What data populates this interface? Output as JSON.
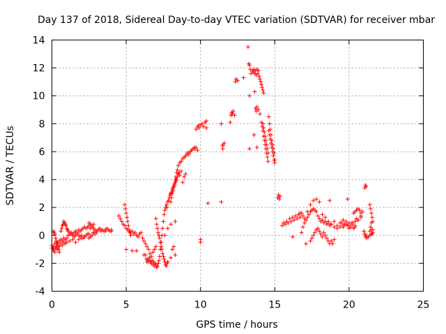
{
  "chart_data": {
    "type": "scatter",
    "title": "Day 137 of 2018, Sidereal Day-to-day VTEC variation (SDTVAR) for receiver mbar",
    "xlabel": "GPS time / hours",
    "ylabel": "SDTVAR / TECUs",
    "xlim": [
      0,
      25
    ],
    "ylim": [
      -4,
      14
    ],
    "xticks": [
      0,
      5,
      10,
      15,
      20,
      25
    ],
    "yticks": [
      -4,
      -2,
      0,
      2,
      4,
      6,
      8,
      10,
      12,
      14
    ],
    "grid": true,
    "marker": "+",
    "color": "#ff0000",
    "series": [
      {
        "name": "SDTVAR",
        "x": [
          0.0,
          0.1,
          0.2,
          0.3,
          0.4,
          0.5,
          0.6,
          0.7,
          0.8,
          0.9,
          1.0,
          1.1,
          1.2,
          1.3,
          1.4,
          1.5,
          1.6,
          1.7,
          1.8,
          1.9,
          2.0,
          2.1,
          2.2,
          2.3,
          2.4,
          2.5,
          2.6,
          2.7,
          2.8,
          2.9,
          3.0,
          3.1,
          3.2,
          3.3,
          3.4,
          3.5,
          3.6,
          3.7,
          3.8,
          3.9,
          4.0,
          0.0,
          0.05,
          0.1,
          0.15,
          0.2,
          0.25,
          0.3,
          0.35,
          0.4,
          0.5,
          0.6,
          0.7,
          0.8,
          0.9,
          1.0,
          1.2,
          1.4,
          1.6,
          1.8,
          2.0,
          2.2,
          2.5,
          2.8,
          3.0,
          3.3,
          3.6,
          4.0,
          0.6,
          0.65,
          0.7,
          0.75,
          0.8,
          0.85,
          0.9,
          0.95,
          1.0,
          1.05,
          1.1,
          1.2,
          1.3,
          1.4,
          1.5,
          1.6,
          1.7,
          1.8,
          1.9,
          2.0,
          2.1,
          2.2,
          2.3,
          2.4,
          2.5,
          2.6,
          2.7,
          2.8,
          2.9,
          3.0,
          0.1,
          0.15,
          0.2,
          0.25,
          0.3,
          0.35,
          0.4,
          0.45,
          0.5,
          2.5,
          2.6,
          2.7,
          2.8,
          4.5,
          4.6,
          4.7,
          4.8,
          4.9,
          5.0,
          5.1,
          5.2,
          5.3,
          5.4,
          5.5,
          5.6,
          5.7,
          5.8,
          5.9,
          6.0,
          6.1,
          6.2,
          6.3,
          6.4,
          6.5,
          6.6,
          6.7,
          6.8,
          6.9,
          7.0,
          4.9,
          4.95,
          5.0,
          5.05,
          5.1,
          5.15,
          5.2,
          5.25,
          5.3,
          6.3,
          6.35,
          6.4,
          6.45,
          6.5,
          6.55,
          6.6,
          6.65,
          6.7,
          6.75,
          6.8,
          6.85,
          6.9,
          6.95,
          7.0,
          7.05,
          7.1,
          7.15,
          7.2,
          7.25,
          7.3,
          7.35,
          7.4,
          7.45,
          7.5,
          7.55,
          7.6,
          7.65,
          7.7,
          7.75,
          7.8,
          7.85,
          7.9,
          7.95,
          8.0,
          8.05,
          8.1,
          8.15,
          8.2,
          8.25,
          8.3,
          8.35,
          8.4,
          8.45,
          8.5,
          8.55,
          8.6,
          8.7,
          8.8,
          8.9,
          9.0,
          9.1,
          9.2,
          9.3,
          9.4,
          9.5,
          9.6,
          9.7,
          9.8,
          7.0,
          7.05,
          7.1,
          7.15,
          7.2,
          7.25,
          7.3,
          7.35,
          7.4,
          7.45,
          7.5,
          7.55,
          7.6,
          7.65,
          7.7,
          7.75,
          7.8,
          8.0,
          8.1,
          8.2,
          8.3,
          5.0,
          5.4,
          5.7,
          6.2,
          7.6,
          7.8,
          8.0,
          8.3,
          8.0,
          8.05,
          8.1,
          8.15,
          8.2,
          8.25,
          8.3,
          8.35,
          8.4,
          8.45,
          8.5,
          8.6,
          8.7,
          8.8,
          8.9,
          9.0,
          9.1,
          9.2,
          9.3,
          9.4,
          9.5,
          9.6,
          9.7,
          9.8,
          9.9,
          10.0,
          10.1,
          10.2,
          10.3,
          10.4,
          9.9,
          10.0,
          10.0,
          10.4,
          10.5,
          11.4,
          11.5,
          11.5,
          11.6,
          11.5,
          11.4,
          12.0,
          12.05,
          12.1,
          12.15,
          12.2,
          12.3,
          12.35,
          12.4,
          12.5,
          12.9,
          13.2,
          13.25,
          13.3,
          13.35,
          13.4,
          13.5,
          13.55,
          13.6,
          13.65,
          13.7,
          13.75,
          13.8,
          13.85,
          13.9,
          13.95,
          14.0,
          14.05,
          14.1,
          14.15,
          14.2,
          14.25,
          13.3,
          13.6,
          13.65,
          13.7,
          13.75,
          13.8,
          13.9,
          14.0,
          14.1,
          14.15,
          14.2,
          14.25,
          14.3,
          14.35,
          14.4,
          14.45,
          14.5,
          14.55,
          14.6,
          14.65,
          14.7,
          14.75,
          14.8,
          14.85,
          14.9,
          14.95,
          15.0,
          14.2,
          14.25,
          14.3,
          14.35,
          14.4,
          14.45,
          14.5,
          14.55,
          14.6,
          14.65,
          14.7,
          14.75,
          14.8,
          14.85,
          14.9,
          14.95,
          15.0,
          13.3,
          13.8,
          15.2,
          15.25,
          15.3,
          15.35,
          15.5,
          15.6,
          15.7,
          15.8,
          15.9,
          16.0,
          16.1,
          16.2,
          16.3,
          16.4,
          16.5,
          16.6,
          16.7,
          16.8,
          16.9,
          17.0,
          17.2,
          17.4,
          17.6,
          17.8,
          18.0,
          18.2,
          18.4,
          18.6,
          18.8,
          19.0,
          19.2,
          19.4,
          19.6,
          19.8,
          20.0,
          20.2,
          20.4,
          20.6,
          20.8,
          16.8,
          16.9,
          17.0,
          17.1,
          17.2,
          17.3,
          17.4,
          17.5,
          17.6,
          17.7,
          17.8,
          17.9,
          18.0,
          18.1,
          18.2,
          18.3,
          18.4,
          18.5,
          18.6,
          18.7,
          18.8,
          19.0,
          19.2,
          19.4,
          19.6,
          19.8,
          20.0,
          20.2,
          20.4,
          20.6,
          20.8,
          19.5,
          19.6,
          19.7,
          19.8,
          19.9,
          20.0,
          20.1,
          20.2,
          20.3,
          20.4,
          20.5,
          17.4,
          17.5,
          17.6,
          17.7,
          17.8,
          17.9,
          18.0,
          18.1,
          18.2,
          18.3,
          18.4,
          18.5,
          18.6,
          18.7,
          18.8,
          18.9,
          19.0,
          20.3,
          20.4,
          20.5,
          20.6,
          20.7,
          20.8,
          20.9,
          21.0,
          21.05,
          21.1,
          21.15,
          21.2,
          21.3,
          21.4,
          21.5,
          21.6,
          21.05,
          21.1,
          21.15,
          21.4,
          21.45,
          21.5,
          21.55,
          21.6,
          21.4,
          21.45,
          21.5,
          21.55,
          21.6,
          21.5,
          16.2,
          16.7,
          17.1,
          17.5,
          18.7,
          19.9
        ],
        "y": [
          -0.9,
          -0.8,
          -0.6,
          -0.5,
          -0.5,
          -0.4,
          -0.3,
          -0.4,
          -0.2,
          -0.3,
          -0.2,
          0.0,
          0.1,
          0.2,
          0.1,
          0.2,
          0.3,
          0.2,
          0.4,
          0.3,
          0.4,
          0.5,
          0.6,
          0.5,
          0.6,
          0.7,
          0.5,
          0.6,
          0.5,
          0.4,
          0.3,
          0.4,
          0.5,
          0.3,
          0.4,
          0.3,
          0.4,
          0.5,
          0.4,
          0.3,
          0.4,
          -0.7,
          -0.9,
          -1.1,
          -1.0,
          -1.2,
          -0.9,
          -0.8,
          -1.0,
          -0.7,
          -0.8,
          -0.6,
          -0.7,
          -0.5,
          -0.6,
          -0.5,
          -0.4,
          -0.3,
          -0.5,
          -0.3,
          -0.2,
          -0.1,
          0.1,
          0.2,
          0.3,
          0.4,
          0.3,
          0.3,
          0.3,
          0.5,
          0.7,
          0.8,
          1.0,
          0.9,
          0.8,
          0.7,
          0.5,
          0.4,
          0.3,
          0.2,
          0.1,
          0.0,
          -0.1,
          0.0,
          0.1,
          0.0,
          -0.1,
          0.0,
          -0.2,
          -0.1,
          0.0,
          0.1,
          -0.2,
          -0.1,
          0.0,
          0.2,
          0.1,
          0.2,
          0.3,
          0.2,
          0.1,
          -0.2,
          -0.4,
          -0.6,
          -0.8,
          -1.0,
          -1.2,
          0.9,
          0.8,
          0.7,
          0.8,
          1.4,
          1.2,
          1.0,
          0.8,
          0.7,
          0.5,
          0.4,
          0.3,
          0.2,
          0.3,
          0.1,
          0.2,
          0.0,
          -0.1,
          0.1,
          0.2,
          -0.2,
          -0.4,
          -0.6,
          -0.8,
          -1.0,
          -1.3,
          -1.5,
          -1.2,
          -1.0,
          -0.8,
          2.2,
          1.9,
          1.6,
          1.3,
          1.0,
          0.7,
          0.4,
          0.2,
          0.0,
          -1.4,
          -1.7,
          -1.9,
          -1.7,
          -1.9,
          -1.6,
          -1.8,
          -1.9,
          -2.0,
          -1.8,
          -2.1,
          -1.9,
          -2.2,
          -2.0,
          -2.1,
          -2.3,
          -2.2,
          -2.0,
          -1.8,
          -1.5,
          -1.0,
          -0.5,
          0.0,
          0.5,
          1.0,
          1.5,
          1.8,
          2.0,
          2.2,
          2.0,
          2.4,
          2.5,
          2.7,
          2.9,
          3.0,
          3.1,
          3.3,
          3.4,
          3.5,
          3.6,
          3.8,
          3.9,
          4.0,
          4.2,
          4.4,
          4.5,
          4.3,
          4.6,
          3.8,
          4.2,
          4.4,
          5.8,
          5.9,
          6.0,
          6.1,
          6.2,
          6.2,
          6.3,
          6.1,
          1.2,
          0.8,
          0.5,
          0.2,
          0.0,
          -0.2,
          -0.5,
          -0.8,
          -1.0,
          -1.3,
          -1.5,
          -1.7,
          -1.9,
          -2.1,
          -2.2,
          -2.0,
          -1.9,
          -1.6,
          -1.0,
          -0.8,
          -1.4,
          -1.0,
          -1.1,
          -1.1,
          -1.4,
          0.0,
          0.5,
          0.8,
          1.0,
          2.4,
          2.7,
          3.0,
          3.2,
          3.5,
          3.7,
          4.0,
          4.2,
          4.5,
          4.7,
          5.0,
          5.2,
          5.3,
          5.5,
          5.6,
          5.7,
          5.9,
          5.8,
          6.0,
          6.1,
          6.2,
          6.3,
          7.6,
          7.8,
          7.7,
          7.9,
          8.0,
          7.8,
          8.1,
          8.2,
          7.9,
          -0.3,
          -0.5,
          7.7,
          2.3,
          2.4,
          6.2,
          6.4,
          6.6,
          6.5,
          8.0,
          8.1,
          8.6,
          8.8,
          8.7,
          8.9,
          8.6,
          11.0,
          11.2,
          11.1,
          11.3,
          13.5,
          12.3,
          12.2,
          11.9,
          11.6,
          11.8,
          11.7,
          11.9,
          11.6,
          11.8,
          11.5,
          11.9,
          11.6,
          11.8,
          11.4,
          11.2,
          11.0,
          10.8,
          10.6,
          10.4,
          10.2,
          10.0,
          7.2,
          10.3,
          9.1,
          8.9,
          9.2,
          9.0,
          8.7,
          8.1,
          7.8,
          7.5,
          7.1,
          6.8,
          6.5,
          6.2,
          5.9,
          5.6,
          5.3,
          8.5,
          8.0,
          7.6,
          7.2,
          6.8,
          6.5,
          6.2,
          5.9,
          5.4,
          8.0,
          7.7,
          7.4,
          7.1,
          6.8,
          6.5,
          6.2,
          5.9,
          7.5,
          7.2,
          6.9,
          6.6,
          6.3,
          6.0,
          5.7,
          5.4,
          5.2,
          6.2,
          6.3,
          2.7,
          2.9,
          2.6,
          2.8,
          0.7,
          0.9,
          0.8,
          1.0,
          0.9,
          1.2,
          1.0,
          1.3,
          1.1,
          1.4,
          1.2,
          1.5,
          1.3,
          1.6,
          1.4,
          1.2,
          1.7,
          2.2,
          2.5,
          2.6,
          2.4,
          1.5,
          1.3,
          1.0,
          0.8,
          1.0,
          0.7,
          0.9,
          0.6,
          0.8,
          0.5,
          0.9,
          0.6,
          1.1,
          1.4,
          0.2,
          0.6,
          0.9,
          1.1,
          1.3,
          1.5,
          1.7,
          1.8,
          1.9,
          1.8,
          1.7,
          1.4,
          1.2,
          1.0,
          1.1,
          0.9,
          1.0,
          0.8,
          0.9,
          0.7,
          0.8,
          0.6,
          0.5,
          0.6,
          0.7,
          0.8,
          0.7,
          0.9,
          1.0,
          1.1,
          1.3,
          0.9,
          1.1,
          0.8,
          1.0,
          0.7,
          0.9,
          0.6,
          0.8,
          0.5,
          0.7,
          1.2,
          -0.4,
          -0.2,
          0.0,
          0.2,
          0.4,
          0.5,
          0.3,
          0.1,
          -0.1,
          0.2,
          0.0,
          -0.2,
          -0.4,
          -0.6,
          -0.4,
          -0.6,
          -0.3,
          1.6,
          1.7,
          1.8,
          1.9,
          1.8,
          1.6,
          1.7,
          0.3,
          0.1,
          -0.1,
          0.0,
          -0.2,
          -0.1,
          0.0,
          0.1,
          0.2,
          3.4,
          3.6,
          3.5,
          2.2,
          1.9,
          1.6,
          1.3,
          1.0,
          0.3,
          0.6,
          0.9,
          0.1,
          0.4,
          0.4,
          -0.1,
          1.6,
          -0.6,
          1.8,
          2.5,
          2.6
        ]
      }
    ]
  }
}
